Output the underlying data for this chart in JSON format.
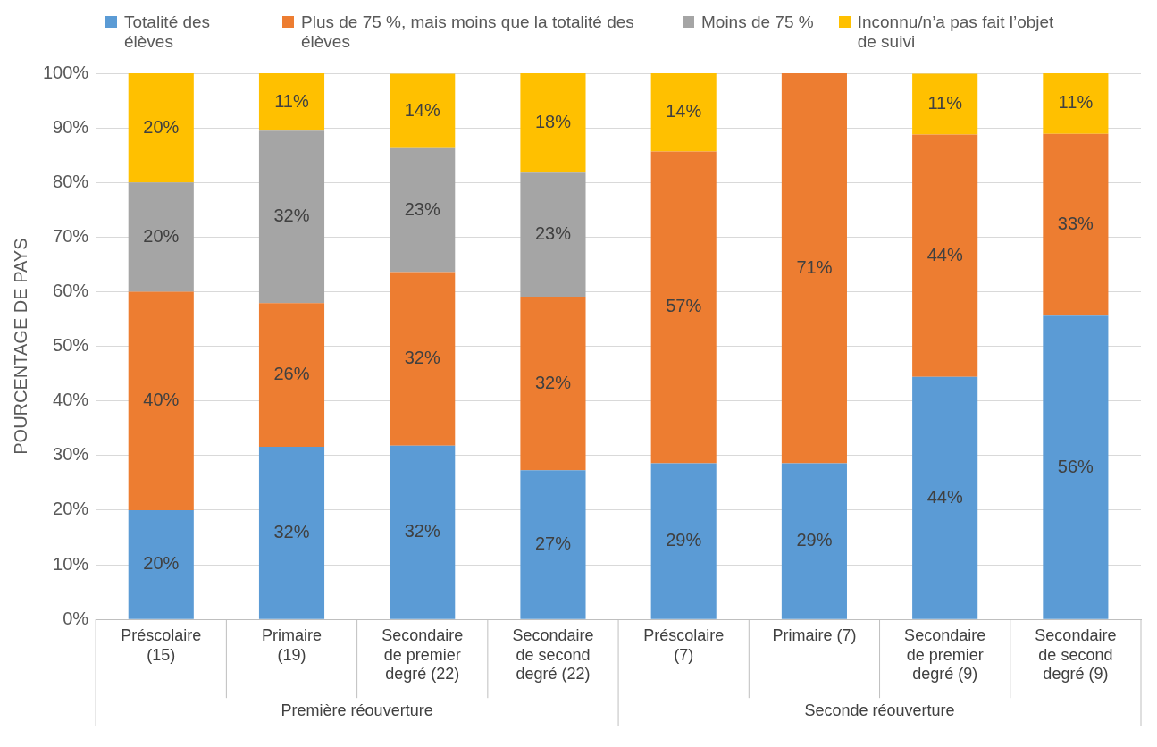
{
  "chart_data": {
    "type": "bar",
    "stacked": true,
    "ylabel": "POURCENTAGE DE PAYS",
    "categories": [
      "Préscolaire (15)",
      "Primaire (19)",
      "Secondaire de premier degré (22)",
      "Secondaire de second degré (22)",
      "Préscolaire (7)",
      "Primaire (7)",
      "Secondaire de premier degré (9)",
      "Secondaire de second degré (9)"
    ],
    "series": [
      {
        "name": "Totalité des élèves",
        "color": "#5b9bd5",
        "values": [
          20,
          31.6,
          31.8,
          27.3,
          28.6,
          28.6,
          44.4,
          55.6
        ],
        "value_labels": [
          "20%",
          "32%",
          "32%",
          "27%",
          "29%",
          "29%",
          "44%",
          "56%"
        ]
      },
      {
        "name": "Plus de 75 %, mais moins que la totalité des élèves",
        "color": "#ed7d31",
        "values": [
          40,
          26.3,
          31.8,
          31.8,
          57.1,
          71.4,
          44.4,
          33.3
        ],
        "value_labels": [
          "40%",
          "26%",
          "32%",
          "32%",
          "57%",
          "71%",
          "44%",
          "33%"
        ]
      },
      {
        "name": "Moins de 75 %",
        "color": "#a5a5a5",
        "values": [
          20,
          31.6,
          22.7,
          22.7,
          0,
          0,
          0,
          0
        ],
        "value_labels": [
          "20%",
          "32%",
          "23%",
          "23%",
          null,
          null,
          null,
          null
        ]
      },
      {
        "name": "Inconnu/n’a pas fait l’objet de suivi",
        "color": "#ffc000",
        "values": [
          20,
          10.5,
          13.6,
          18.2,
          14.3,
          0,
          11.1,
          11.1
        ],
        "value_labels": [
          "20%",
          "11%",
          "14%",
          "18%",
          "14%",
          null,
          "11%",
          "11%"
        ]
      }
    ],
    "ylim": [
      0,
      100
    ],
    "yticks": [
      {
        "value": 0,
        "label": "0%"
      },
      {
        "value": 10,
        "label": "10%"
      },
      {
        "value": 20,
        "label": "20%"
      },
      {
        "value": 30,
        "label": "30%"
      },
      {
        "value": 40,
        "label": "40%"
      },
      {
        "value": 50,
        "label": "50%"
      },
      {
        "value": 60,
        "label": "60%"
      },
      {
        "value": 70,
        "label": "70%"
      },
      {
        "value": 80,
        "label": "80%"
      },
      {
        "value": 90,
        "label": "90%"
      },
      {
        "value": 100,
        "label": "100%"
      }
    ],
    "grid": "y",
    "legend": "top",
    "annotations": [
      "Première réouverture",
      "Seconde réouverture"
    ]
  }
}
